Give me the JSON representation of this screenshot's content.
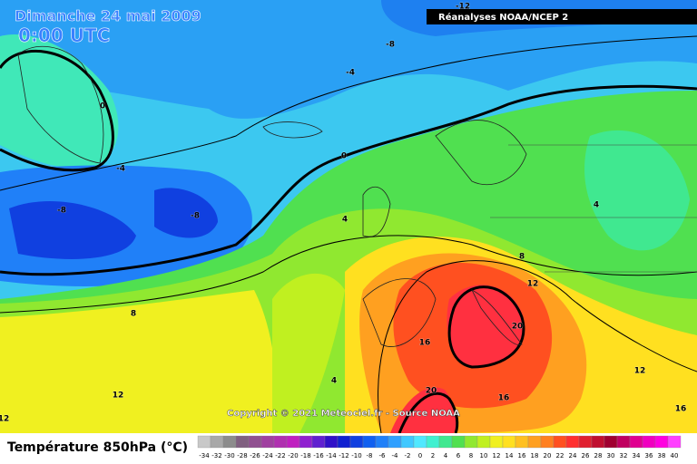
{
  "header": {
    "title": "Dimanche 24 mai 2009",
    "time": "0:00 UTC",
    "source": "Réanalyses NOAA/NCEP 2"
  },
  "copyright": "Copyright © 2021 Meteociel.fr - Source NOAA",
  "contour_labels": [
    -12,
    -8,
    -4,
    0,
    -4,
    0,
    -8,
    -8,
    4,
    4,
    8,
    12,
    8,
    20,
    16,
    4,
    12,
    20,
    16,
    12,
    16,
    12
  ],
  "legend": {
    "title": "Température 850hPa (°C)",
    "levels": [
      {
        "value": -34,
        "color": "#c8c8c8"
      },
      {
        "value": -32,
        "color": "#a8a8a8"
      },
      {
        "value": -30,
        "color": "#8c8c8c"
      },
      {
        "value": -28,
        "color": "#806080"
      },
      {
        "value": -26,
        "color": "#905090"
      },
      {
        "value": -24,
        "color": "#a040a0"
      },
      {
        "value": -22,
        "color": "#b030b0"
      },
      {
        "value": -20,
        "color": "#c020c0"
      },
      {
        "value": -18,
        "color": "#9020d0"
      },
      {
        "value": -16,
        "color": "#6020d0"
      },
      {
        "value": -14,
        "color": "#3010c8"
      },
      {
        "value": -12,
        "color": "#1020d0"
      },
      {
        "value": -10,
        "color": "#1040e0"
      },
      {
        "value": -8,
        "color": "#1060f0"
      },
      {
        "value": -6,
        "color": "#2080f8"
      },
      {
        "value": -4,
        "color": "#30a0ff"
      },
      {
        "value": -2,
        "color": "#40c8ff"
      },
      {
        "value": 0,
        "color": "#50e8ff"
      },
      {
        "value": 2,
        "color": "#40f0d0"
      },
      {
        "value": 4,
        "color": "#40e890"
      },
      {
        "value": 6,
        "color": "#50e050"
      },
      {
        "value": 8,
        "color": "#90e830"
      },
      {
        "value": 10,
        "color": "#c0f020"
      },
      {
        "value": 12,
        "color": "#f0f020"
      },
      {
        "value": 14,
        "color": "#ffe020"
      },
      {
        "value": 16,
        "color": "#ffc020"
      },
      {
        "value": 18,
        "color": "#ffa020"
      },
      {
        "value": 20,
        "color": "#ff8020"
      },
      {
        "value": 22,
        "color": "#ff5020"
      },
      {
        "value": 24,
        "color": "#ff3030"
      },
      {
        "value": 26,
        "color": "#e02030"
      },
      {
        "value": 28,
        "color": "#c01030"
      },
      {
        "value": 30,
        "color": "#a00030"
      },
      {
        "value": 32,
        "color": "#c00060"
      },
      {
        "value": 34,
        "color": "#e00090"
      },
      {
        "value": 36,
        "color": "#f000c0"
      },
      {
        "value": 38,
        "color": "#ff00e0"
      },
      {
        "value": 40,
        "color": "#ff40ff"
      }
    ]
  }
}
